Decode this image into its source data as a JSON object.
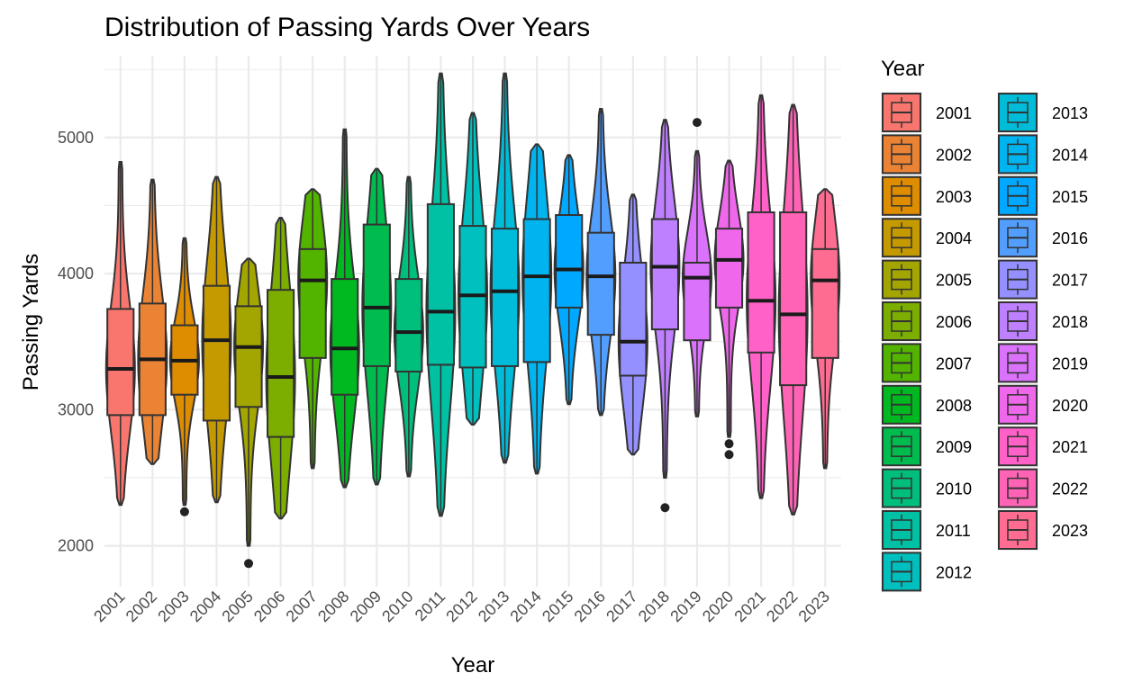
{
  "chart_data": {
    "type": "violin",
    "title": "Distribution of Passing Yards Over Years",
    "xlabel": "Year",
    "ylabel": "Passing Yards",
    "ylim": [
      1700,
      5600
    ],
    "y_ticks": [
      2000,
      3000,
      4000,
      5000
    ],
    "grid": true,
    "legend_title": "Year",
    "legend_position": "right",
    "categories": [
      "2001",
      "2002",
      "2003",
      "2004",
      "2005",
      "2006",
      "2007",
      "2008",
      "2009",
      "2010",
      "2011",
      "2012",
      "2013",
      "2014",
      "2015",
      "2016",
      "2017",
      "2018",
      "2019",
      "2020",
      "2021",
      "2022",
      "2023"
    ],
    "colors": [
      "#F8766D",
      "#EB8335",
      "#DE8C00",
      "#C49A00",
      "#A3A500",
      "#7CAE00",
      "#53B400",
      "#00B81F",
      "#00BB4E",
      "#00BF7D",
      "#00C1A3",
      "#00C0BF",
      "#00BCD8",
      "#00B4EF",
      "#00A9FF",
      "#529EFF",
      "#9590FF",
      "#BF80FF",
      "#DA72FB",
      "#EF67EB",
      "#FF61C9",
      "#FF63B6",
      "#FF6C91"
    ],
    "series": [
      {
        "min": 2300,
        "q1": 2960,
        "median": 3300,
        "q3": 3740,
        "max": 4820,
        "outliers": []
      },
      {
        "min": 2600,
        "q1": 2960,
        "median": 3370,
        "q3": 3780,
        "max": 4690,
        "outliers": []
      },
      {
        "min": 2300,
        "q1": 3110,
        "median": 3360,
        "q3": 3620,
        "max": 4260,
        "outliers": [
          2250
        ]
      },
      {
        "min": 2320,
        "q1": 2920,
        "median": 3510,
        "q3": 3910,
        "max": 4710,
        "outliers": []
      },
      {
        "min": 2000,
        "q1": 3020,
        "median": 3460,
        "q3": 3760,
        "max": 4110,
        "outliers": [
          1870
        ]
      },
      {
        "min": 2200,
        "q1": 2800,
        "median": 3240,
        "q3": 3880,
        "max": 4410,
        "outliers": []
      },
      {
        "min": 2570,
        "q1": 3380,
        "median": 3950,
        "q3": 4180,
        "max": 4620,
        "outliers": []
      },
      {
        "min": 2430,
        "q1": 3110,
        "median": 3450,
        "q3": 3960,
        "max": 5060,
        "outliers": []
      },
      {
        "min": 2450,
        "q1": 3320,
        "median": 3750,
        "q3": 4360,
        "max": 4770,
        "outliers": []
      },
      {
        "min": 2510,
        "q1": 3280,
        "median": 3570,
        "q3": 3960,
        "max": 4710,
        "outliers": []
      },
      {
        "min": 2220,
        "q1": 3330,
        "median": 3720,
        "q3": 4510,
        "max": 5470,
        "outliers": []
      },
      {
        "min": 2890,
        "q1": 3310,
        "median": 3840,
        "q3": 4350,
        "max": 5180,
        "outliers": []
      },
      {
        "min": 2610,
        "q1": 3320,
        "median": 3870,
        "q3": 4330,
        "max": 5470,
        "outliers": []
      },
      {
        "min": 2530,
        "q1": 3350,
        "median": 3980,
        "q3": 4400,
        "max": 4950,
        "outliers": []
      },
      {
        "min": 3040,
        "q1": 3750,
        "median": 4030,
        "q3": 4430,
        "max": 4870,
        "outliers": []
      },
      {
        "min": 2960,
        "q1": 3550,
        "median": 3980,
        "q3": 4300,
        "max": 5210,
        "outliers": []
      },
      {
        "min": 2670,
        "q1": 3250,
        "median": 3500,
        "q3": 4080,
        "max": 4580,
        "outliers": []
      },
      {
        "min": 2500,
        "q1": 3590,
        "median": 4050,
        "q3": 4400,
        "max": 5130,
        "outliers": [
          2280
        ]
      },
      {
        "min": 2950,
        "q1": 3510,
        "median": 3970,
        "q3": 4080,
        "max": 4900,
        "outliers": [
          5110
        ]
      },
      {
        "min": 2800,
        "q1": 3750,
        "median": 4100,
        "q3": 4330,
        "max": 4830,
        "outliers": [
          2670,
          2750
        ]
      },
      {
        "min": 2350,
        "q1": 3420,
        "median": 3800,
        "q3": 4450,
        "max": 5310,
        "outliers": []
      },
      {
        "min": 2230,
        "q1": 3180,
        "median": 3700,
        "q3": 4450,
        "max": 5240,
        "outliers": []
      },
      {
        "min": 2570,
        "q1": 3380,
        "median": 3950,
        "q3": 4180,
        "max": 4620,
        "outliers": []
      }
    ]
  }
}
